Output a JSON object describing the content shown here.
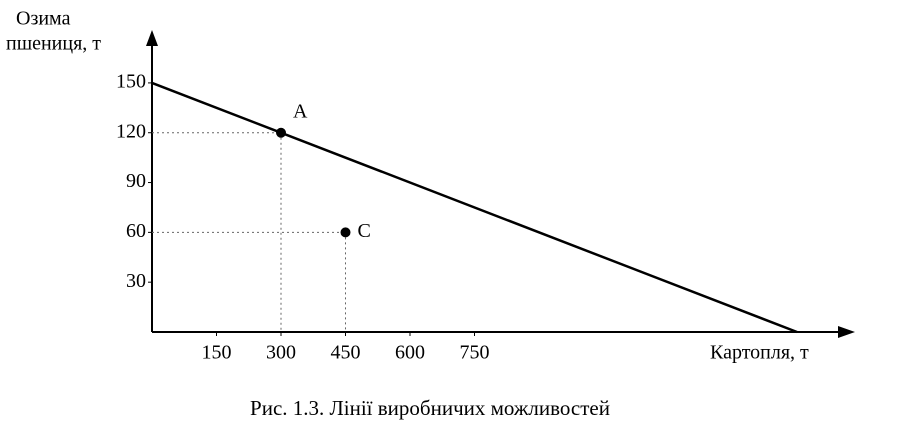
{
  "chart_data": {
    "type": "line",
    "y_label": [
      "Озима",
      "пшениця, т"
    ],
    "x_label": "Картопля, т",
    "caption": "Рис. 1.3. Лінії виробничих можливостей",
    "xlim": [
      0,
      1600
    ],
    "ylim": [
      0,
      165
    ],
    "xticks": [
      150,
      300,
      450,
      600,
      750
    ],
    "yticks": [
      30,
      60,
      90,
      120,
      150
    ],
    "series": [
      {
        "x": [
          0,
          1500
        ],
        "values": [
          150,
          0
        ],
        "color": "#000000"
      }
    ],
    "points": [
      {
        "label": "A",
        "x": 300,
        "y": 120
      },
      {
        "label": "C",
        "x": 450,
        "y": 60
      }
    ]
  }
}
